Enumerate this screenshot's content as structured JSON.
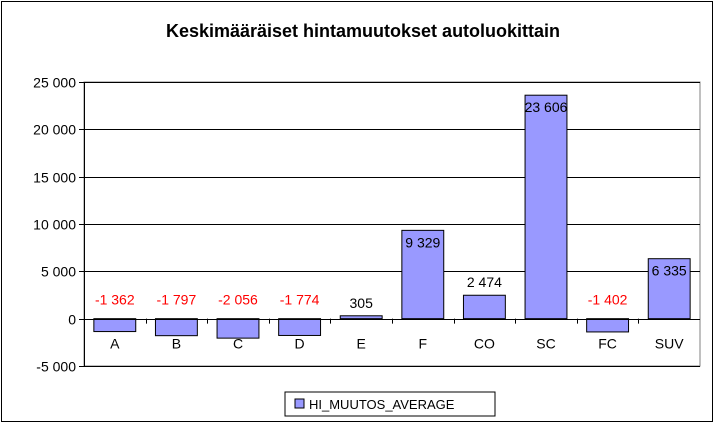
{
  "chart_data": {
    "type": "bar",
    "title": "Keskimääräiset hintamuutokset autoluokittain",
    "categories": [
      "A",
      "B",
      "C",
      "D",
      "E",
      "F",
      "CO",
      "SC",
      "FC",
      "SUV"
    ],
    "series": [
      {
        "name": "HI_MUUTOS_AVERAGE",
        "values": [
          -1362,
          -1797,
          -2056,
          -1774,
          305,
          9329,
          2474,
          23606,
          -1402,
          6335
        ],
        "labels": [
          "-1 362",
          "-1 797",
          "-2 056",
          "-1 774",
          "305",
          "9 329",
          "2 474",
          "23 606",
          "-1 402",
          "6 335"
        ],
        "color": "#9999ff"
      }
    ],
    "ylim": [
      -5000,
      25000
    ],
    "yticks": [
      25000,
      20000,
      15000,
      10000,
      5000,
      0,
      -5000
    ],
    "ytick_labels": [
      "25 000",
      "20 000",
      "15 000",
      "10 000",
      "5 000",
      "0",
      "-5 000"
    ],
    "xlabel": "",
    "ylabel": "",
    "grid": true,
    "legend_position": "bottom",
    "negative_label_color": "#ff0000",
    "positive_label_color": "#000000"
  }
}
